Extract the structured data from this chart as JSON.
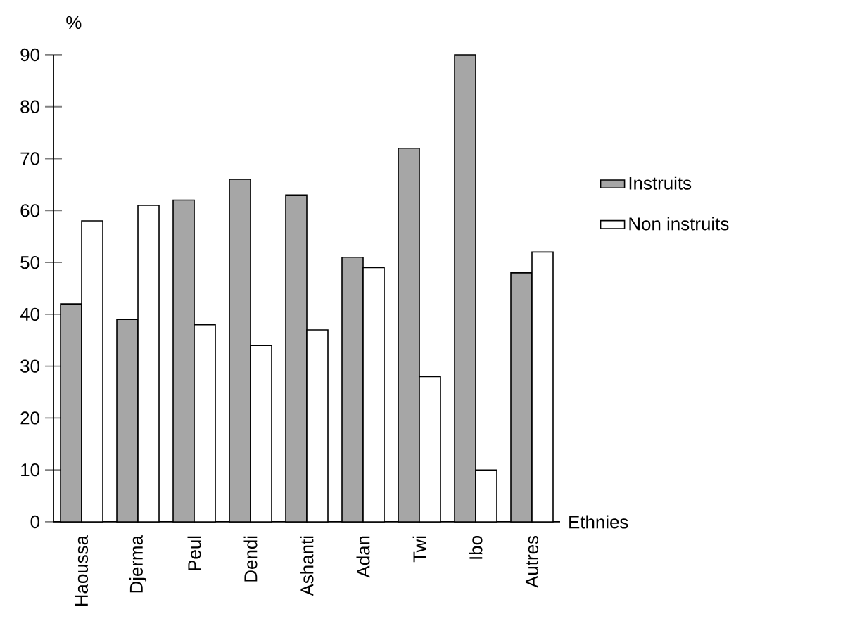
{
  "chart_data": {
    "type": "bar",
    "xlabel": "Ethnies",
    "ylabel": "%",
    "categories": [
      "Haoussa",
      "Djerma",
      "Peul",
      "Dendi",
      "Ashanti",
      "Adan",
      "Twi",
      "Ibo",
      "Autres"
    ],
    "series": [
      {
        "name": "Instruits",
        "color": "#a6a6a6",
        "values": [
          42,
          39,
          62,
          66,
          63,
          51,
          72,
          90,
          48
        ]
      },
      {
        "name": "Non instruits",
        "color": "#ffffff",
        "values": [
          58,
          61,
          38,
          34,
          37,
          49,
          28,
          10,
          52
        ]
      }
    ],
    "ylim": [
      0,
      90
    ],
    "yticks": [
      0,
      10,
      20,
      30,
      40,
      50,
      60,
      70,
      80,
      90
    ],
    "legend": "right",
    "grid": false
  }
}
